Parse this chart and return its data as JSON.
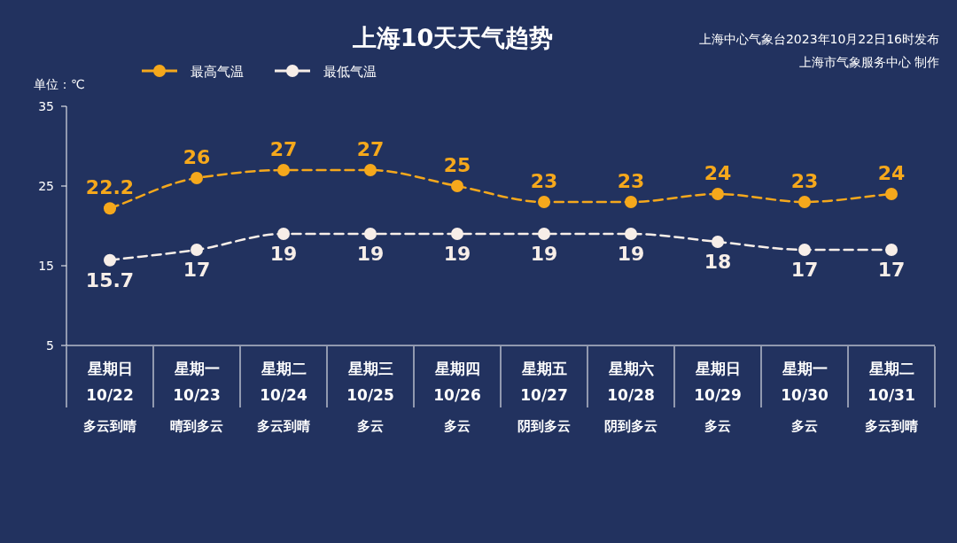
{
  "chart_data": {
    "type": "line",
    "title": "上海10天天气趋势",
    "ylabel": "单位：℃",
    "annotations": [
      "上海中心气象台2023年10月22日16时发布",
      "上海市气象服务中心 制作"
    ],
    "categories": [
      "星期日\n10/22\n多云到晴",
      "星期一\n10/23\n晴到多云",
      "星期二\n10/24\n多云到晴",
      "星期三\n10/25\n多云",
      "星期四\n10/26\n多云",
      "星期五\n10/27\n阴到多云",
      "星期六\n10/28\n阴到多云",
      "星期日\n10/29\n多云",
      "星期一\n10/30\n多云",
      "星期二\n10/31\n多云到晴"
    ],
    "series": [
      {
        "name": "最高气温",
        "color": "#f5a81c",
        "values": [
          22.2,
          26,
          27,
          27,
          25,
          23,
          23,
          24,
          23,
          24
        ]
      },
      {
        "name": "最低气温",
        "color": "#f7eee8",
        "values": [
          15.7,
          17,
          19,
          19,
          19,
          19,
          19,
          18,
          17,
          17
        ]
      }
    ],
    "ylim": [
      5,
      35
    ],
    "yticks": [
      5,
      15,
      25,
      35
    ],
    "legend": "top left",
    "marker": "circle",
    "line_style": "dashed",
    "data_labels": true
  }
}
